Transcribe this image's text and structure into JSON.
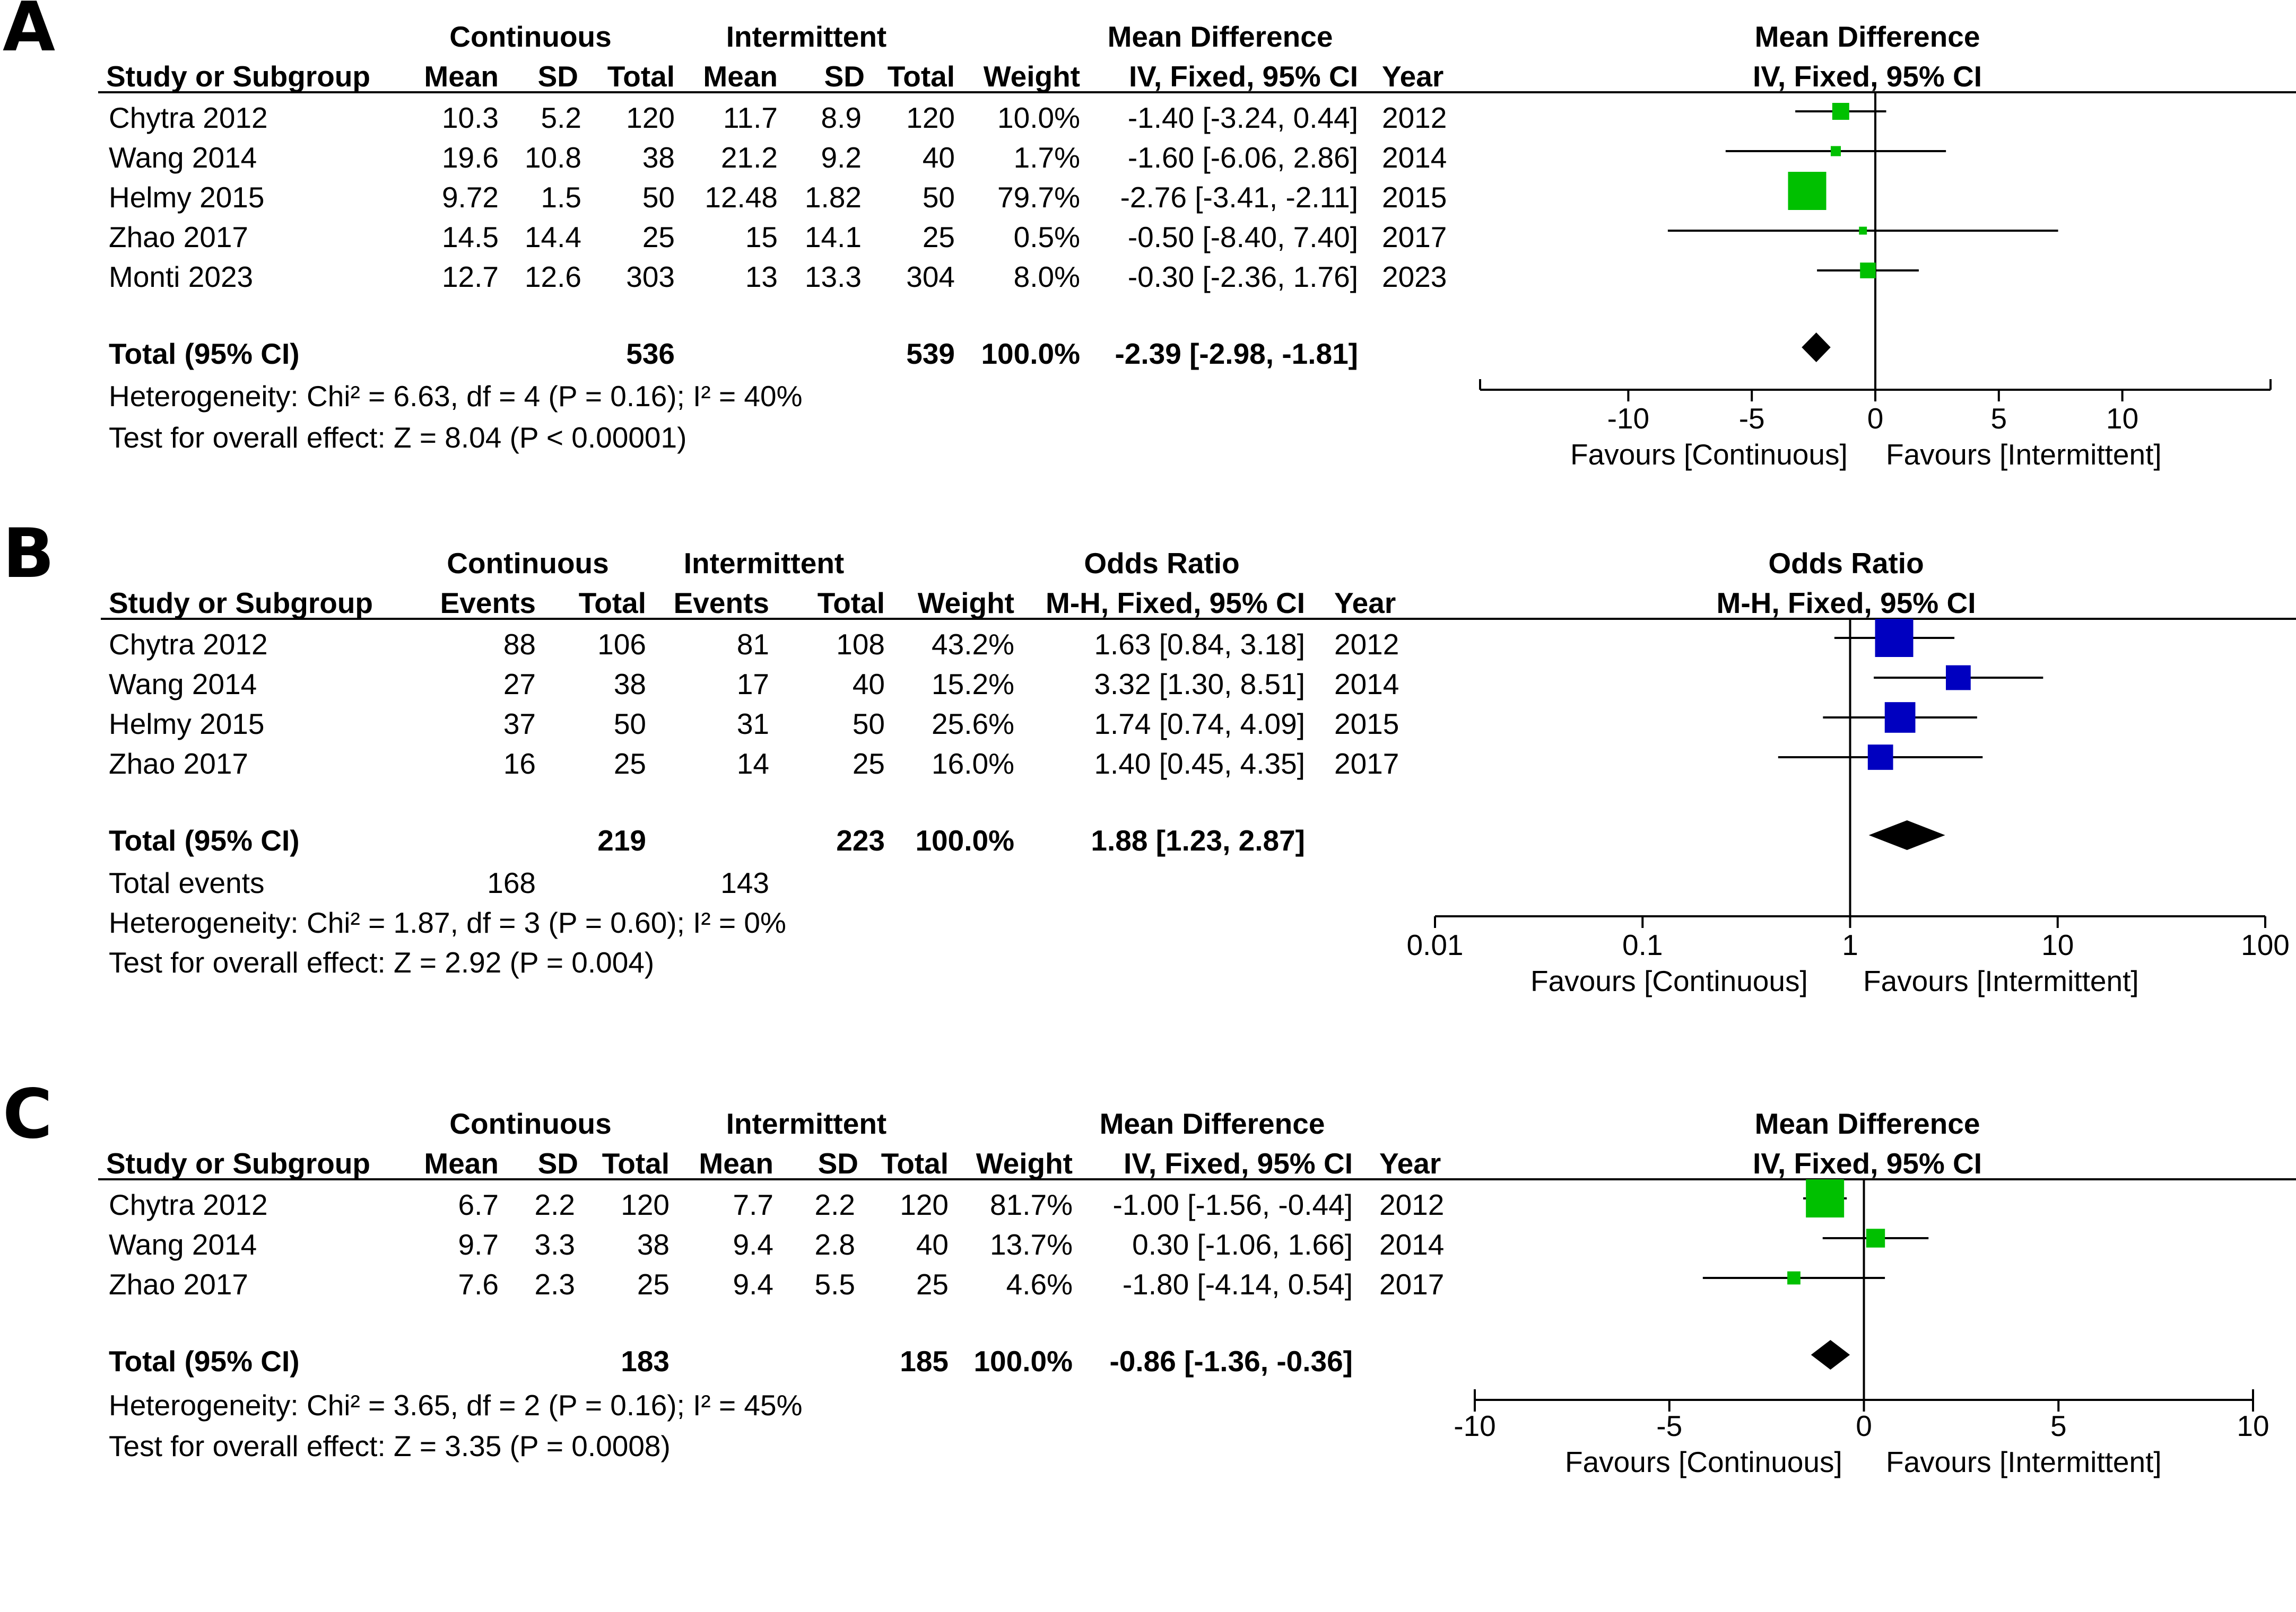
{
  "chart_data": [
    {
      "type": "forest",
      "panel_label": "A",
      "measure": "Mean Difference",
      "method": "IV, Fixed, 95% CI",
      "header": {
        "study": "Study or Subgroup",
        "group1": "Continuous",
        "group2": "Intermittent",
        "cols": [
          "Mean",
          "SD",
          "Total",
          "Mean",
          "SD",
          "Total",
          "Weight"
        ],
        "year": "Year",
        "effect_col": "Mean Difference",
        "effect_method": "IV, Fixed, 95% CI",
        "plot_title": "Mean Difference",
        "plot_method": "IV, Fixed, 95% CI"
      },
      "studies": [
        {
          "name": "Chytra 2012",
          "cells": [
            "10.3",
            "5.2",
            "120",
            "11.7",
            "8.9",
            "120",
            "10.0%"
          ],
          "ci_text": "-1.40 [-3.24, 0.44]",
          "year": "2012",
          "est": -1.4,
          "lo": -3.24,
          "hi": 0.44,
          "weight": 10.0
        },
        {
          "name": "Wang 2014",
          "cells": [
            "19.6",
            "10.8",
            "38",
            "21.2",
            "9.2",
            "40",
            "1.7%"
          ],
          "ci_text": "-1.60 [-6.06, 2.86]",
          "year": "2014",
          "est": -1.6,
          "lo": -6.06,
          "hi": 2.86,
          "weight": 1.7
        },
        {
          "name": "Helmy 2015",
          "cells": [
            "9.72",
            "1.5",
            "50",
            "12.48",
            "1.82",
            "50",
            "79.7%"
          ],
          "ci_text": "-2.76 [-3.41, -2.11]",
          "year": "2015",
          "est": -2.76,
          "lo": -3.41,
          "hi": -2.11,
          "weight": 79.7
        },
        {
          "name": "Zhao 2017",
          "cells": [
            "14.5",
            "14.4",
            "25",
            "15",
            "14.1",
            "25",
            "0.5%"
          ],
          "ci_text": "-0.50 [-8.40, 7.40]",
          "year": "2017",
          "est": -0.5,
          "lo": -8.4,
          "hi": 7.4,
          "weight": 0.5
        },
        {
          "name": "Monti 2023",
          "cells": [
            "12.7",
            "12.6",
            "303",
            "13",
            "13.3",
            "304",
            "8.0%"
          ],
          "ci_text": "-0.30 [-2.36, 1.76]",
          "year": "2023",
          "est": -0.3,
          "lo": -2.36,
          "hi": 1.76,
          "weight": 8.0
        }
      ],
      "total": {
        "label": "Total (95% CI)",
        "n1": "536",
        "n2": "539",
        "weight": "100.0%",
        "ci_text": "-2.39 [-2.98, -1.81]",
        "est": -2.39,
        "lo": -2.98,
        "hi": -1.81
      },
      "total_events": null,
      "heterogeneity": "Heterogeneity: Chi² = 6.63, df = 4 (P = 0.16); I² = 40%",
      "overall_effect": "Test for overall effect: Z = 8.04 (P < 0.00001)",
      "axis": {
        "scale": "linear",
        "min": -16,
        "max": 16,
        "ticks": [
          -10,
          -5,
          0,
          5,
          10
        ],
        "tick_labels": [
          "-10",
          "-5",
          "0",
          "5",
          "10"
        ]
      },
      "favours_left": "Favours [Continuous]",
      "favours_right": "Favours [Intermittent]",
      "marker_color": "#00c000"
    },
    {
      "type": "forest",
      "panel_label": "B",
      "measure": "Odds Ratio",
      "method": "M-H, Fixed, 95% CI",
      "header": {
        "study": "Study or Subgroup",
        "group1": "Continuous",
        "group2": "Intermittent",
        "cols": [
          "Events",
          "Total",
          "Events",
          "Total",
          "Weight"
        ],
        "year": "Year",
        "effect_col": "Odds Ratio",
        "effect_method": "M-H, Fixed, 95% CI",
        "plot_title": "Odds Ratio",
        "plot_method": "M-H, Fixed, 95% CI"
      },
      "studies": [
        {
          "name": "Chytra 2012",
          "cells": [
            "88",
            "106",
            "81",
            "108",
            "43.2%"
          ],
          "ci_text": "1.63 [0.84, 3.18]",
          "year": "2012",
          "est": 1.63,
          "lo": 0.84,
          "hi": 3.18,
          "weight": 43.2
        },
        {
          "name": "Wang 2014",
          "cells": [
            "27",
            "38",
            "17",
            "40",
            "15.2%"
          ],
          "ci_text": "3.32 [1.30, 8.51]",
          "year": "2014",
          "est": 3.32,
          "lo": 1.3,
          "hi": 8.51,
          "weight": 15.2
        },
        {
          "name": "Helmy 2015",
          "cells": [
            "37",
            "50",
            "31",
            "50",
            "25.6%"
          ],
          "ci_text": "1.74 [0.74, 4.09]",
          "year": "2015",
          "est": 1.74,
          "lo": 0.74,
          "hi": 4.09,
          "weight": 25.6
        },
        {
          "name": "Zhao 2017",
          "cells": [
            "16",
            "25",
            "14",
            "25",
            "16.0%"
          ],
          "ci_text": "1.40 [0.45, 4.35]",
          "year": "2017",
          "est": 1.4,
          "lo": 0.45,
          "hi": 4.35,
          "weight": 16.0
        }
      ],
      "total": {
        "label": "Total (95% CI)",
        "n1": "219",
        "n2": "223",
        "weight": "100.0%",
        "ci_text": "1.88 [1.23, 2.87]",
        "est": 1.88,
        "lo": 1.23,
        "hi": 2.87
      },
      "total_events": {
        "label": "Total events",
        "e1": "168",
        "e2": "143"
      },
      "heterogeneity": "Heterogeneity: Chi² = 1.87, df = 3 (P = 0.60); I² = 0%",
      "overall_effect": "Test for overall effect: Z = 2.92 (P = 0.004)",
      "axis": {
        "scale": "log",
        "min": 0.01,
        "max": 100,
        "ticks": [
          0.01,
          0.1,
          1,
          10,
          100
        ],
        "tick_labels": [
          "0.01",
          "0.1",
          "1",
          "10",
          "100"
        ]
      },
      "favours_left": "Favours [Continuous]",
      "favours_right": "Favours [Intermittent]",
      "marker_color": "#0000c0"
    },
    {
      "type": "forest",
      "panel_label": "C",
      "measure": "Mean Difference",
      "method": "IV, Fixed, 95% CI",
      "header": {
        "study": "Study or Subgroup",
        "group1": "Continuous",
        "group2": "Intermittent",
        "cols": [
          "Mean",
          "SD",
          "Total",
          "Mean",
          "SD",
          "Total",
          "Weight"
        ],
        "year": "Year",
        "effect_col": "Mean Difference",
        "effect_method": "IV, Fixed, 95% CI",
        "plot_title": "Mean Difference",
        "plot_method": "IV, Fixed, 95% CI"
      },
      "studies": [
        {
          "name": "Chytra 2012",
          "cells": [
            "6.7",
            "2.2",
            "120",
            "7.7",
            "2.2",
            "120",
            "81.7%"
          ],
          "ci_text": "-1.00 [-1.56, -0.44]",
          "year": "2012",
          "est": -1.0,
          "lo": -1.56,
          "hi": -0.44,
          "weight": 81.7
        },
        {
          "name": "Wang 2014",
          "cells": [
            "9.7",
            "3.3",
            "38",
            "9.4",
            "2.8",
            "40",
            "13.7%"
          ],
          "ci_text": "0.30 [-1.06, 1.66]",
          "year": "2014",
          "est": 0.3,
          "lo": -1.06,
          "hi": 1.66,
          "weight": 13.7
        },
        {
          "name": "Zhao 2017",
          "cells": [
            "7.6",
            "2.3",
            "25",
            "9.4",
            "5.5",
            "25",
            "4.6%"
          ],
          "ci_text": "-1.80 [-4.14, 0.54]",
          "year": "2017",
          "est": -1.8,
          "lo": -4.14,
          "hi": 0.54,
          "weight": 4.6
        }
      ],
      "total": {
        "label": "Total (95% CI)",
        "n1": "183",
        "n2": "185",
        "weight": "100.0%",
        "ci_text": "-0.86 [-1.36, -0.36]",
        "est": -0.86,
        "lo": -1.36,
        "hi": -0.36
      },
      "total_events": null,
      "heterogeneity": "Heterogeneity: Chi² = 3.65, df = 2 (P = 0.16); I² = 45%",
      "overall_effect": "Test for overall effect: Z = 3.35 (P = 0.0008)",
      "axis": {
        "scale": "linear",
        "min": -10,
        "max": 10,
        "ticks": [
          -10,
          -5,
          0,
          5,
          10
        ],
        "tick_labels": [
          "-10",
          "-5",
          "0",
          "5",
          "10"
        ]
      },
      "favours_left": "Favours [Continuous]",
      "favours_right": "Favours [Intermittent]",
      "marker_color": "#00c000"
    }
  ]
}
